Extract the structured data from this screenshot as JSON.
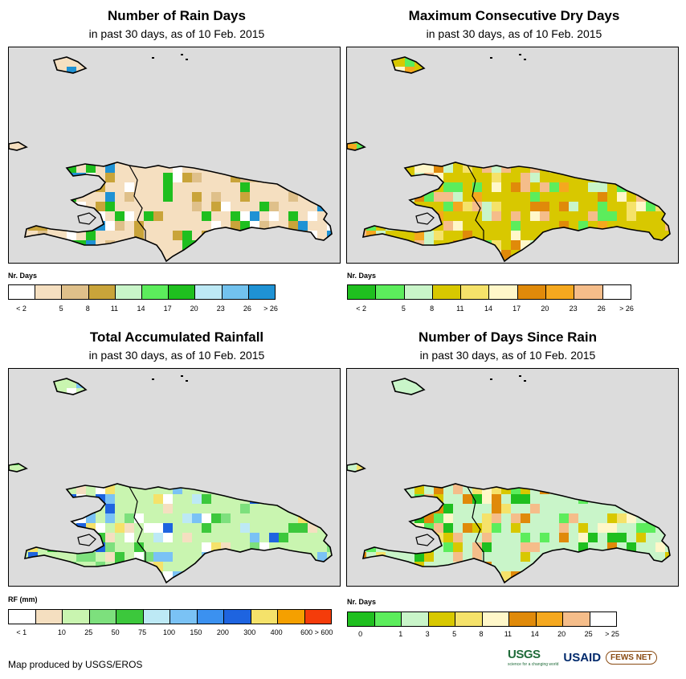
{
  "panels": [
    {
      "id": "rain-days",
      "title": "Number of Rain Days",
      "subtitle": "in past 30 days, as of 10 Feb. 2015",
      "legend_title": "Nr. Days",
      "legend_colors": [
        "#ffffff",
        "#f5dfc0",
        "#dfc08a",
        "#c9a43a",
        "#c9f5c9",
        "#5ced5c",
        "#1fbf1f",
        "#bde9f5",
        "#72c2ee",
        "#1f92d4"
      ],
      "legend_labels": [
        "< 2",
        "5",
        "8",
        "11",
        "14",
        "17",
        "20",
        "23",
        "26",
        "> 26"
      ],
      "grid_palette": [
        "#ffffff",
        "#f5dfc0",
        "#dfc08a",
        "#c9a43a",
        "#1fbf1f",
        "#1f92d4"
      ],
      "grid_default": 1
    },
    {
      "id": "dry-days",
      "title": "Maximum Consecutive Dry Days",
      "subtitle": "in past 30 days, as of 10 Feb. 2015",
      "legend_title": "Nr. Days",
      "legend_colors": [
        "#1fbf1f",
        "#5ced5c",
        "#c9f5c9",
        "#d8c800",
        "#f5e26a",
        "#fff7c9",
        "#e08a0a",
        "#f5a81f",
        "#f5bd8a",
        "#ffffff"
      ],
      "legend_labels": [
        "< 2",
        "5",
        "8",
        "11",
        "14",
        "17",
        "20",
        "23",
        "26",
        "> 26"
      ],
      "grid_palette": [
        "#d8c800",
        "#f5e26a",
        "#fff7c9",
        "#e08a0a",
        "#f5a81f",
        "#c9f5c9",
        "#5ced5c",
        "#f5bd8a"
      ],
      "grid_default": 0
    },
    {
      "id": "rainfall",
      "title": "Total Accumulated Rainfall",
      "subtitle": "in past 30 days, as of 10 Feb. 2015",
      "legend_title": "RF (mm)",
      "legend_colors": [
        "#ffffff",
        "#f5dfc0",
        "#c9f5b0",
        "#7de07d",
        "#3cc83c",
        "#bde9f5",
        "#7ac2f5",
        "#3b91f0",
        "#1e64e0",
        "#f5e26a",
        "#f5a000",
        "#f53c0a"
      ],
      "legend_labels": [
        "< 1",
        "10",
        "25",
        "50",
        "75",
        "100",
        "150",
        "200",
        "300",
        "400",
        "600 > 600"
      ],
      "grid_palette": [
        "#c9f5b0",
        "#7de07d",
        "#3cc83c",
        "#bde9f5",
        "#7ac2f5",
        "#1e64e0",
        "#f5dfc0",
        "#ffffff",
        "#f5e26a"
      ],
      "grid_default": 0
    },
    {
      "id": "since-rain",
      "title": "Number of Days Since Rain",
      "subtitle": "in past 30 days, as of 10 Feb. 2015",
      "legend_title": "Nr. Days",
      "legend_colors": [
        "#1fbf1f",
        "#5ced5c",
        "#c9f5c9",
        "#d8c800",
        "#f5e26a",
        "#fff7c9",
        "#e08a0a",
        "#f5a81f",
        "#f5bd8a",
        "#ffffff"
      ],
      "legend_labels": [
        "0",
        "1",
        "3",
        "5",
        "8",
        "11",
        "14",
        "20",
        "25",
        "> 25"
      ],
      "grid_palette": [
        "#c9f5c9",
        "#5ced5c",
        "#1fbf1f",
        "#e08a0a",
        "#fff7c9",
        "#f5e26a",
        "#d8c800",
        "#f5bd8a"
      ],
      "grid_default": 0
    }
  ],
  "footer": {
    "credit": "Map produced by USGS/EROS"
  },
  "logos": {
    "usgs": "USGS",
    "usgs_tag": "science for a changing world",
    "usaid": "USAID",
    "fews": "FEWS NET"
  }
}
